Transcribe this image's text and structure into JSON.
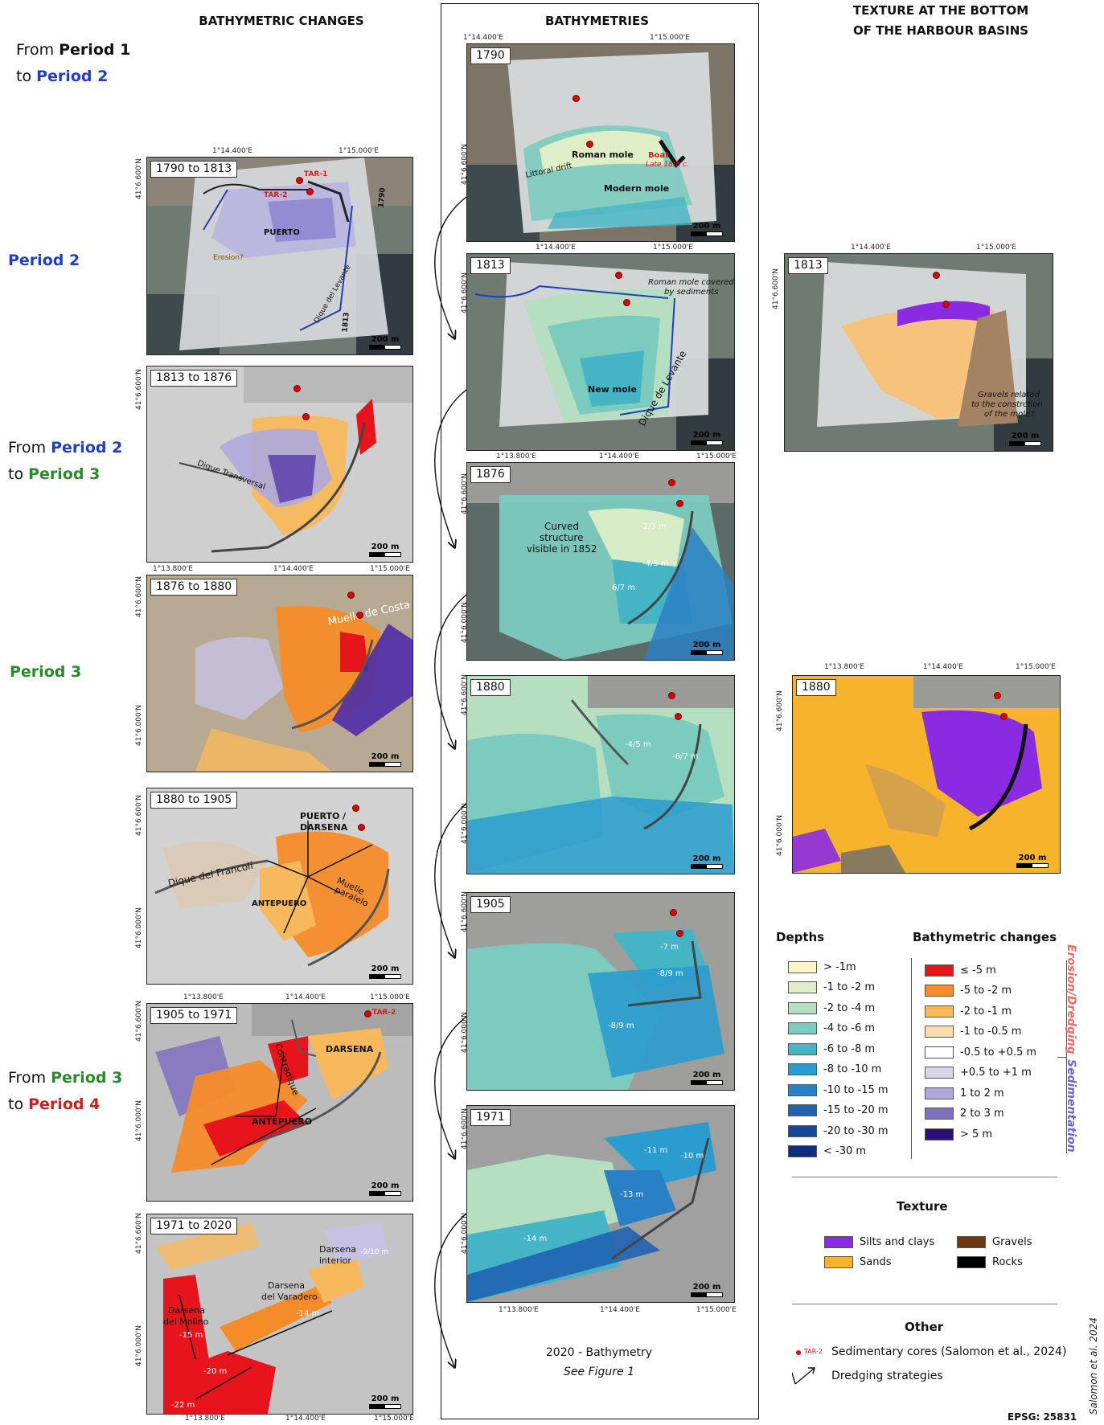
{
  "headers": {
    "col1": "BATHYMETRIC CHANGES",
    "col2": "BATHYMETRIES",
    "col3_line1": "TEXTURE AT THE BOTTOM",
    "col3_line2": "OF THE HARBOUR BASINS"
  },
  "periods": {
    "p1_from": "From ",
    "p1_b1": "Period 1",
    "p1_to": "to ",
    "p1_b2": "Period 2",
    "p2": "Period 2",
    "p23_from": "From ",
    "p23_b1": "Period 2",
    "p23_to": "to ",
    "p23_b2": "Period 3",
    "p3": "Period 3",
    "p34_from": "From ",
    "p34_b1": "Period 3",
    "p34_to": "to ",
    "p34_b2": "Period 4"
  },
  "ticks": {
    "e13800": "1°13.800'E",
    "e14400": "1°14.400'E",
    "e15000": "1°15.000'E",
    "n6600": "41°6.600'N",
    "n6000": "41°6.000'N"
  },
  "scale_label": "200 m",
  "change_maps": [
    {
      "title": "1790 to 1813",
      "labels": {
        "tar1": "TAR-1",
        "tar2": "TAR-2",
        "puerto": "PUERTO",
        "erosion": "Erosion?",
        "dique": "Dique del Levante",
        "y1790": "1790",
        "y1813": "1813"
      }
    },
    {
      "title": "1813 to 1876",
      "labels": {
        "dique": "Dique Transversal"
      }
    },
    {
      "title": "1876 to 1880",
      "labels": {
        "muelle": "Muelle de Costa"
      }
    },
    {
      "title": "1880 to 1905",
      "labels": {
        "puerto": "PUERTO /",
        "darsena": "DARSENA",
        "dique": "Dique del Francolí",
        "antepuero": "ANTEPUERO",
        "muelle": "Muelle",
        "paralelo": "paralelo"
      }
    },
    {
      "title": "1905 to 1971",
      "labels": {
        "tar2": "TAR-2",
        "darsena": "DARSENA",
        "contradique": "Contradique",
        "antepuero": "ANTEPUERO"
      }
    },
    {
      "title": "1971 to 2020",
      "labels": {
        "interior1": "Darsena",
        "interior2": "interior",
        "d910": "-9/10 m",
        "varadero1": "Darsena",
        "varadero2": "del Varadero",
        "d14": "-14 m",
        "molino1": "Darsena",
        "molino2": "del Molino",
        "d15": "-15 m",
        "d20": "-20 m",
        "d22": "-22 m"
      }
    }
  ],
  "bathy_maps": [
    {
      "title": "1790",
      "labels": {
        "roman": "Roman mole",
        "boat1": "Boat",
        "boat2": "Late 18th c.",
        "drift": "Littoral drift",
        "modern": "Modern mole"
      }
    },
    {
      "title": "1813",
      "labels": {
        "covered1": "Roman mole covered",
        "covered2": "by sediments",
        "newmole": "New mole",
        "dique": "Dique de Levante"
      }
    },
    {
      "title": "1876",
      "labels": {
        "curved1": "Curved",
        "curved2": "structure",
        "curved3": "visible in 1852",
        "d23": "-2/3 m",
        "d45": "-4/5 m",
        "d67": "6/7 m"
      }
    },
    {
      "title": "1880",
      "labels": {
        "d45": "-4/5 m",
        "d67": "-6/7 m"
      }
    },
    {
      "title": "1905",
      "labels": {
        "d7": "-7 m",
        "d89a": "-8/9 m",
        "d89b": "-8/9 m"
      }
    },
    {
      "title": "1971",
      "labels": {
        "d11": "-11 m",
        "d10": "-10 m",
        "d13": "-13 m",
        "d14": "-14 m"
      }
    }
  ],
  "bathy_footer": {
    "line1": "2020 - Bathymetry",
    "line2": "See Figure 1"
  },
  "texture_maps": [
    {
      "title": "1813",
      "labels": {
        "g1": "Gravels related",
        "g2": "to the constrction",
        "g3": "of the mole?"
      }
    },
    {
      "title": "1880",
      "labels": {}
    }
  ],
  "legend": {
    "depths_title": "Depths",
    "depths": [
      {
        "label": "> -1m",
        "color": "#fbf5c8"
      },
      {
        "label": "-1 to -2 m",
        "color": "#e0eec8"
      },
      {
        "label": "-2 to -4 m",
        "color": "#b6dec0"
      },
      {
        "label": "-4 to -6 m",
        "color": "#7ccbbf"
      },
      {
        "label": "-6 to -8 m",
        "color": "#45b5c6"
      },
      {
        "label": "-8 to -10 m",
        "color": "#2a9ccf"
      },
      {
        "label": "-10 to -15 m",
        "color": "#2a80c4"
      },
      {
        "label": "-15 to -20 m",
        "color": "#2063b3"
      },
      {
        "label": "-20 to -30 m",
        "color": "#17489b"
      },
      {
        "label": "< -30 m",
        "color": "#102e80"
      }
    ],
    "changes_title": "Bathymetric changes",
    "changes": [
      {
        "label": "≤ -5 m",
        "color": "#e8141c"
      },
      {
        "label": "-5 to -2 m",
        "color": "#f58c2a"
      },
      {
        "label": "-2 to -1 m",
        "color": "#f8b95c"
      },
      {
        "label": "-1 to -0.5 m",
        "color": "#fddcae"
      },
      {
        "label": "-0.5 to +0.5 m",
        "color": "#ffffff"
      },
      {
        "label": "+0.5 to +1 m",
        "color": "#d9d5ec"
      },
      {
        "label": "1 to 2 m",
        "color": "#aea8dc"
      },
      {
        "label": "2 to 3 m",
        "color": "#8070c0"
      },
      {
        "label": "> 5 m",
        "color": "#2c0d7a"
      }
    ],
    "erosion_label": "Erosion/Dredging",
    "sedimentation_label": "Sedimentation",
    "texture_title": "Texture",
    "texture": [
      {
        "label": "Silts and clays",
        "color": "#8a2be2"
      },
      {
        "label": "Gravels",
        "color": "#6b3a10"
      },
      {
        "label": "Sands",
        "color": "#f7b32b"
      },
      {
        "label": "Rocks",
        "color": "#000000"
      }
    ],
    "other_title": "Other",
    "core_tag": "TAR-2",
    "core_label": "Sedimentary cores (Salomon et al., 2024)",
    "dredging_label": "Dredging strategies"
  },
  "credit": "Salomon et al. 2024",
  "epsg": "EPSG: 25831"
}
